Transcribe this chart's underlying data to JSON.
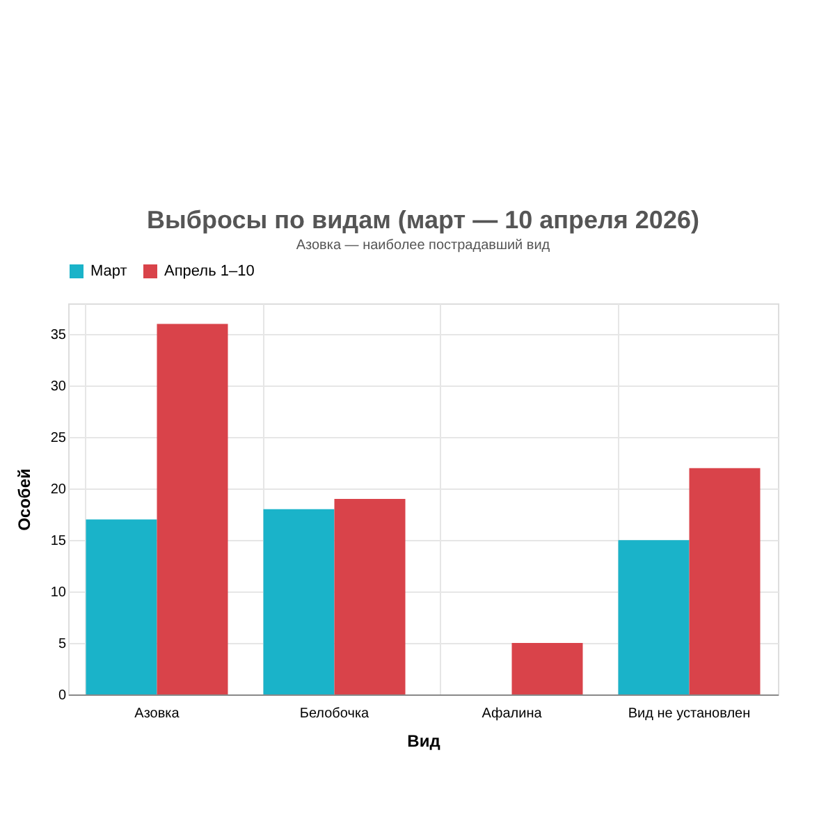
{
  "chart_data": {
    "type": "bar",
    "title": "Выбросы по видам (март — 10 апреля 2026)",
    "subtitle": "Азовка — наиболее пострадавший вид",
    "xlabel": "Вид",
    "ylabel": "Особей",
    "categories": [
      "Азовка",
      "Белобочка",
      "Афалина",
      "Вид не установлен"
    ],
    "series": [
      {
        "name": "Март",
        "color": "#1ab3c9",
        "values": [
          17,
          18,
          null,
          15
        ]
      },
      {
        "name": "Апрель 1–10",
        "color": "#d9434a",
        "values": [
          36,
          19,
          5,
          22
        ]
      }
    ],
    "ylim": [
      0,
      38
    ],
    "yticks": [
      0,
      5,
      10,
      15,
      20,
      25,
      30,
      35
    ],
    "grid": true,
    "legend": "top"
  }
}
